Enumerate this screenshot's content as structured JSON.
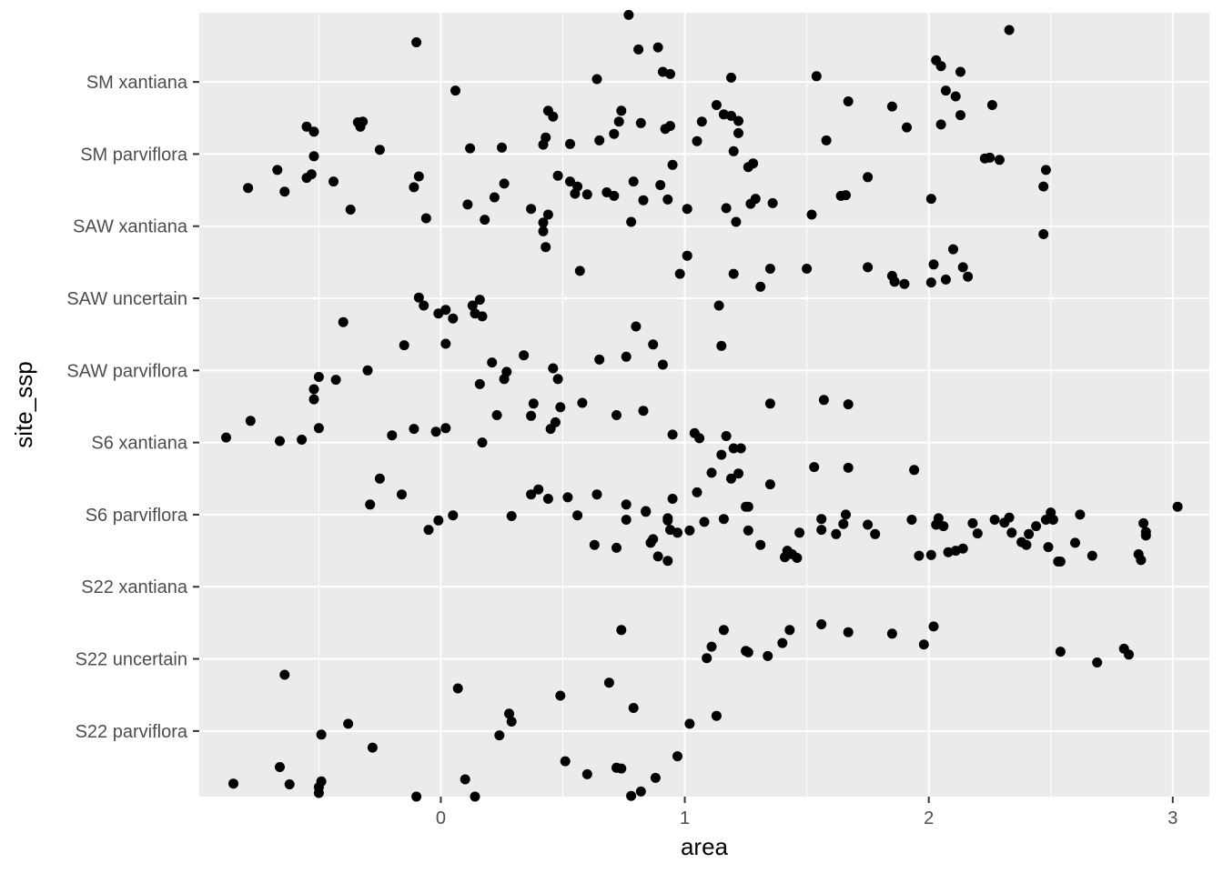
{
  "chart_data": {
    "type": "scatter",
    "xlabel": "area",
    "ylabel": "site_ssp",
    "categories": [
      "S22 parviflora",
      "S22 uncertain",
      "S22 xantiana",
      "S6 parviflora",
      "S6 xantiana",
      "SAW parviflora",
      "SAW uncertain",
      "SAW xantiana",
      "SM parviflora",
      "SM xantiana"
    ],
    "x_ticks": [
      0,
      1,
      2,
      3
    ],
    "xlim": [
      -0.99,
      3.15
    ],
    "ylim": [
      0.09,
      10.96
    ],
    "grid": true,
    "background": "#ebebeb",
    "gridline_color": "#ffffff",
    "point_color": "#000000",
    "points": [
      [
        -0.85,
        0.27
      ],
      [
        -0.66,
        0.5
      ],
      [
        -0.62,
        0.26
      ],
      [
        -0.5,
        0.14
      ],
      [
        -0.49,
        0.3
      ],
      [
        -0.49,
        0.95
      ],
      [
        -0.38,
        1.1
      ],
      [
        -0.28,
        0.77
      ],
      [
        -0.1,
        0.0
      ],
      [
        0.07,
        1.59
      ],
      [
        0.14,
        0.05
      ],
      [
        0.24,
        0.94
      ],
      [
        0.28,
        1.24
      ],
      [
        0.29,
        1.13
      ],
      [
        0.49,
        1.49
      ],
      [
        0.51,
        0.58
      ],
      [
        0.6,
        0.4
      ],
      [
        0.69,
        1.67
      ],
      [
        0.72,
        0.49
      ],
      [
        0.79,
        1.32
      ],
      [
        0.82,
        0.16
      ],
      [
        0.88,
        0.35
      ],
      [
        0.97,
        0.65
      ],
      [
        1.02,
        1.1
      ],
      [
        1.13,
        1.21
      ],
      [
        0.78,
        0.1
      ],
      [
        0.74,
        0.48
      ],
      [
        0.1,
        0.33
      ],
      [
        -0.5,
        0.22
      ],
      [
        -0.64,
        1.78
      ],
      [
        0.74,
        2.4
      ],
      [
        1.09,
        2.01
      ],
      [
        1.11,
        2.17
      ],
      [
        1.16,
        2.4
      ],
      [
        1.26,
        2.09
      ],
      [
        1.34,
        2.04
      ],
      [
        1.4,
        2.22
      ],
      [
        1.43,
        2.4
      ],
      [
        1.56,
        2.48
      ],
      [
        1.67,
        2.37
      ],
      [
        1.85,
        2.35
      ],
      [
        1.98,
        2.2
      ],
      [
        2.02,
        2.45
      ],
      [
        2.54,
        2.1
      ],
      [
        2.69,
        1.95
      ],
      [
        2.8,
        2.14
      ],
      [
        2.82,
        2.06
      ],
      [
        1.25,
        2.11
      ],
      [
        0.76,
        3.93
      ],
      [
        0.84,
        4.04
      ],
      [
        0.86,
        3.61
      ],
      [
        0.87,
        3.66
      ],
      [
        0.89,
        3.42
      ],
      [
        0.93,
        3.36
      ],
      [
        0.93,
        3.92
      ],
      [
        0.94,
        3.79
      ],
      [
        0.97,
        3.75
      ],
      [
        1.02,
        3.78
      ],
      [
        1.16,
        3.94
      ],
      [
        1.26,
        3.78
      ],
      [
        1.31,
        3.58
      ],
      [
        1.41,
        3.41
      ],
      [
        1.42,
        3.5
      ],
      [
        1.44,
        3.45
      ],
      [
        1.46,
        3.4
      ],
      [
        1.47,
        3.75
      ],
      [
        1.56,
        3.94
      ],
      [
        1.56,
        3.79
      ],
      [
        1.62,
        3.73
      ],
      [
        1.65,
        3.87
      ],
      [
        1.66,
        4.0
      ],
      [
        1.75,
        3.86
      ],
      [
        1.78,
        3.73
      ],
      [
        1.93,
        3.93
      ],
      [
        1.96,
        3.43
      ],
      [
        2.01,
        3.44
      ],
      [
        2.03,
        3.86
      ],
      [
        2.04,
        3.95
      ],
      [
        2.06,
        3.84
      ],
      [
        2.08,
        3.48
      ],
      [
        2.11,
        3.5
      ],
      [
        2.14,
        3.53
      ],
      [
        2.18,
        3.88
      ],
      [
        2.2,
        3.74
      ],
      [
        2.27,
        3.93
      ],
      [
        2.31,
        3.89
      ],
      [
        2.33,
        3.96
      ],
      [
        2.34,
        3.75
      ],
      [
        2.38,
        3.62
      ],
      [
        2.4,
        3.58
      ],
      [
        2.41,
        3.73
      ],
      [
        2.44,
        3.84
      ],
      [
        2.48,
        3.93
      ],
      [
        2.5,
        4.03
      ],
      [
        2.51,
        3.93
      ],
      [
        2.6,
        3.61
      ],
      [
        2.62,
        4.0
      ],
      [
        2.67,
        3.43
      ],
      [
        2.88,
        3.88
      ],
      [
        2.89,
        3.71
      ],
      [
        2.89,
        3.76
      ],
      [
        2.87,
        3.37
      ],
      [
        2.86,
        3.45
      ],
      [
        2.53,
        3.35
      ],
      [
        2.49,
        3.55
      ],
      [
        2.54,
        3.35
      ],
      [
        3.02,
        4.11
      ],
      [
        1.08,
        3.9
      ],
      [
        -0.29,
        4.14
      ],
      [
        0.29,
        3.98
      ],
      [
        0.4,
        4.35
      ],
      [
        0.44,
        4.22
      ],
      [
        0.52,
        4.24
      ],
      [
        0.56,
        3.99
      ],
      [
        0.64,
        4.28
      ],
      [
        0.76,
        4.14
      ],
      [
        0.84,
        4.05
      ],
      [
        0.95,
        4.22
      ],
      [
        1.05,
        4.31
      ],
      [
        1.11,
        4.58
      ],
      [
        1.19,
        4.5
      ],
      [
        1.22,
        4.57
      ],
      [
        1.25,
        4.11
      ],
      [
        1.26,
        4.11
      ],
      [
        1.35,
        4.42
      ],
      [
        1.53,
        4.66
      ],
      [
        1.67,
        4.65
      ],
      [
        1.94,
        4.62
      ],
      [
        0.05,
        3.99
      ],
      [
        -0.01,
        3.92
      ],
      [
        -0.05,
        3.79
      ],
      [
        0.63,
        3.58
      ],
      [
        0.72,
        3.54
      ],
      [
        0.93,
        3.95
      ],
      [
        0.37,
        4.28
      ],
      [
        -0.25,
        4.5
      ],
      [
        -0.16,
        4.28
      ],
      [
        -0.88,
        5.07
      ],
      [
        -0.78,
        5.3
      ],
      [
        -0.66,
        5.02
      ],
      [
        -0.57,
        5.04
      ],
      [
        -0.5,
        5.2
      ],
      [
        -0.2,
        5.1
      ],
      [
        -0.11,
        5.19
      ],
      [
        -0.02,
        5.15
      ],
      [
        0.02,
        5.2
      ],
      [
        0.17,
        5.0
      ],
      [
        0.23,
        5.38
      ],
      [
        0.37,
        5.37
      ],
      [
        0.38,
        5.54
      ],
      [
        0.45,
        5.19
      ],
      [
        0.47,
        5.28
      ],
      [
        0.49,
        5.49
      ],
      [
        0.58,
        5.55
      ],
      [
        0.72,
        5.38
      ],
      [
        0.83,
        5.44
      ],
      [
        0.95,
        5.11
      ],
      [
        1.04,
        5.13
      ],
      [
        1.06,
        5.06
      ],
      [
        1.15,
        4.83
      ],
      [
        1.17,
        5.09
      ],
      [
        1.2,
        4.92
      ],
      [
        1.23,
        4.92
      ],
      [
        1.35,
        5.54
      ],
      [
        1.57,
        5.59
      ],
      [
        1.67,
        5.53
      ],
      [
        0.16,
        5.81
      ],
      [
        0.26,
        5.88
      ],
      [
        0.48,
        5.88
      ],
      [
        -0.52,
        5.74
      ],
      [
        -0.52,
        5.6
      ],
      [
        -0.5,
        5.91
      ],
      [
        -0.43,
        5.87
      ],
      [
        -0.3,
        6.0
      ],
      [
        -0.15,
        6.35
      ],
      [
        0.02,
        6.37
      ],
      [
        0.21,
        6.11
      ],
      [
        0.27,
        5.98
      ],
      [
        0.34,
        6.21
      ],
      [
        0.46,
        6.03
      ],
      [
        0.65,
        6.15
      ],
      [
        0.76,
        6.19
      ],
      [
        0.91,
        6.08
      ],
      [
        1.14,
        6.9
      ],
      [
        1.15,
        6.34
      ],
      [
        0.8,
        6.61
      ],
      [
        0.87,
        6.36
      ],
      [
        -0.07,
        6.9
      ],
      [
        0.05,
        6.72
      ],
      [
        0.13,
        6.9
      ],
      [
        0.16,
        6.98
      ],
      [
        -0.01,
        6.79
      ],
      [
        -0.09,
        7.01
      ],
      [
        0.02,
        6.84
      ],
      [
        0.14,
        6.79
      ],
      [
        0.17,
        6.75
      ],
      [
        -0.4,
        6.67
      ],
      [
        0.98,
        7.34
      ],
      [
        1.01,
        7.59
      ],
      [
        1.2,
        7.34
      ],
      [
        1.31,
        7.16
      ],
      [
        1.35,
        7.41
      ],
      [
        1.5,
        7.41
      ],
      [
        1.75,
        7.43
      ],
      [
        1.85,
        7.31
      ],
      [
        1.86,
        7.23
      ],
      [
        1.9,
        7.2
      ],
      [
        2.01,
        7.22
      ],
      [
        2.02,
        7.47
      ],
      [
        2.07,
        7.26
      ],
      [
        2.1,
        7.68
      ],
      [
        2.14,
        7.43
      ],
      [
        2.16,
        7.3
      ],
      [
        2.47,
        7.89
      ],
      [
        0.43,
        7.71
      ],
      [
        0.57,
        7.38
      ],
      [
        0.78,
        8.06
      ],
      [
        -0.79,
        8.53
      ],
      [
        -0.67,
        8.78
      ],
      [
        -0.64,
        8.48
      ],
      [
        -0.55,
        8.67
      ],
      [
        -0.53,
        8.72
      ],
      [
        -0.52,
        8.97
      ],
      [
        -0.44,
        8.62
      ],
      [
        -0.37,
        8.23
      ],
      [
        -0.11,
        8.54
      ],
      [
        -0.06,
        8.11
      ],
      [
        0.11,
        8.3
      ],
      [
        0.18,
        8.09
      ],
      [
        0.22,
        8.4
      ],
      [
        0.26,
        8.59
      ],
      [
        0.37,
        8.24
      ],
      [
        0.42,
        8.05
      ],
      [
        0.42,
        7.93
      ],
      [
        0.44,
        8.16
      ],
      [
        0.48,
        8.7
      ],
      [
        0.53,
        8.62
      ],
      [
        0.55,
        8.45
      ],
      [
        0.56,
        8.55
      ],
      [
        0.6,
        8.44
      ],
      [
        0.68,
        8.47
      ],
      [
        0.71,
        8.42
      ],
      [
        0.79,
        8.62
      ],
      [
        0.83,
        8.36
      ],
      [
        0.9,
        8.57
      ],
      [
        0.93,
        8.37
      ],
      [
        1.01,
        8.24
      ],
      [
        1.17,
        8.25
      ],
      [
        1.21,
        8.06
      ],
      [
        1.27,
        8.31
      ],
      [
        1.29,
        8.38
      ],
      [
        1.36,
        8.32
      ],
      [
        1.52,
        8.16
      ],
      [
        1.64,
        8.42
      ],
      [
        1.66,
        8.43
      ],
      [
        1.75,
        8.68
      ],
      [
        2.01,
        8.38
      ],
      [
        2.23,
        8.94
      ],
      [
        2.25,
        8.95
      ],
      [
        2.29,
        8.92
      ],
      [
        2.47,
        8.55
      ],
      [
        2.48,
        8.78
      ],
      [
        1.26,
        8.82
      ],
      [
        1.28,
        8.87
      ],
      [
        0.95,
        8.85
      ],
      [
        1.2,
        9.04
      ],
      [
        1.16,
        9.55
      ],
      [
        -0.55,
        9.38
      ],
      [
        -0.52,
        9.31
      ],
      [
        -0.33,
        9.38
      ],
      [
        -0.32,
        9.45
      ],
      [
        -0.25,
        9.06
      ],
      [
        -0.09,
        8.69
      ],
      [
        0.12,
        9.08
      ],
      [
        0.25,
        9.09
      ],
      [
        0.42,
        9.13
      ],
      [
        0.44,
        9.6
      ],
      [
        0.46,
        9.52
      ],
      [
        0.53,
        9.14
      ],
      [
        0.73,
        9.45
      ],
      [
        0.82,
        9.43
      ],
      [
        0.92,
        9.35
      ],
      [
        1.05,
        9.18
      ],
      [
        1.13,
        9.68
      ],
      [
        1.58,
        9.19
      ],
      [
        1.67,
        9.73
      ],
      [
        1.85,
        9.66
      ],
      [
        1.91,
        9.37
      ],
      [
        2.05,
        9.41
      ],
      [
        2.13,
        9.54
      ],
      [
        2.26,
        9.68
      ],
      [
        2.07,
        9.88
      ],
      [
        2.11,
        9.8
      ],
      [
        0.64,
        10.04
      ],
      [
        0.06,
        9.88
      ],
      [
        -0.1,
        10.55
      ],
      [
        0.81,
        10.45
      ],
      [
        0.91,
        10.14
      ],
      [
        0.94,
        10.11
      ],
      [
        0.89,
        10.48
      ],
      [
        1.19,
        10.06
      ],
      [
        1.54,
        10.08
      ],
      [
        2.03,
        10.3
      ],
      [
        2.05,
        10.22
      ],
      [
        2.13,
        10.14
      ],
      [
        2.33,
        10.72
      ],
      [
        0.77,
        10.93
      ],
      [
        -0.34,
        9.44
      ],
      [
        0.43,
        9.23
      ],
      [
        0.65,
        9.19
      ],
      [
        0.71,
        9.28
      ],
      [
        1.19,
        9.53
      ],
      [
        1.22,
        9.29
      ],
      [
        0.74,
        9.6
      ],
      [
        1.07,
        9.45
      ],
      [
        0.94,
        9.39
      ],
      [
        1.22,
        9.46
      ]
    ]
  }
}
